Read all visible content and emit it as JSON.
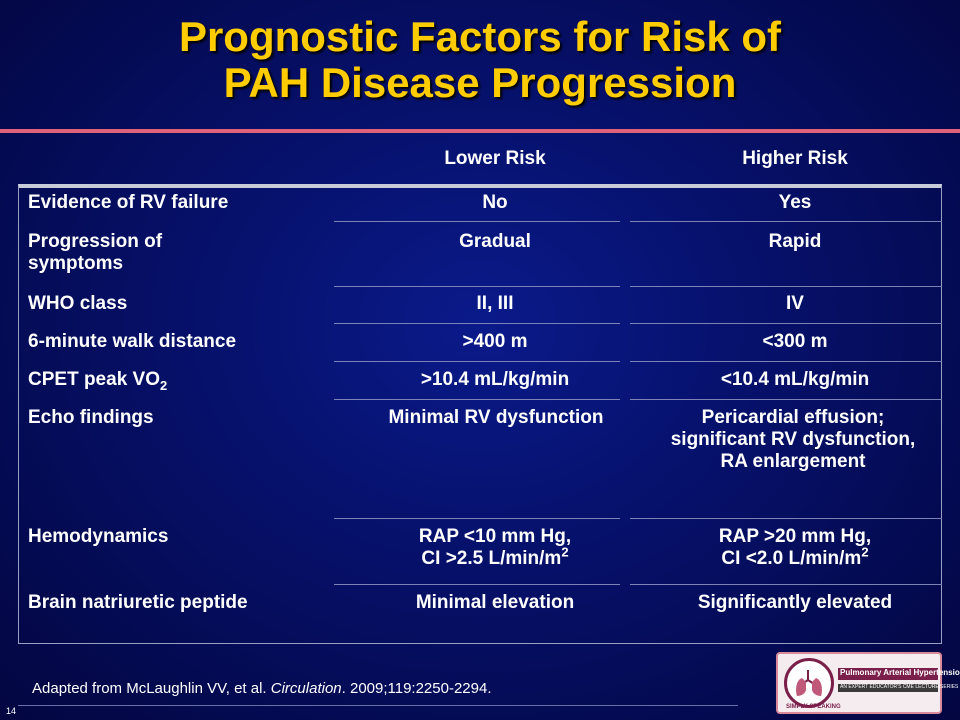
{
  "title": {
    "line1": "Prognostic Factors for Risk of",
    "line2": "PAH Disease Progression"
  },
  "columns": {
    "lower": "Lower Risk",
    "higher": "Higher Risk"
  },
  "rows": [
    {
      "label": "Evidence of RV failure",
      "lower": "No",
      "higher": "Yes"
    },
    {
      "label": "Progression of symptoms",
      "lower": "Gradual",
      "higher": "Rapid"
    },
    {
      "label": "WHO class",
      "lower": "II, III",
      "higher": "IV"
    },
    {
      "label": "6-minute walk distance",
      "lower": ">400 m",
      "higher": "<300 m"
    },
    {
      "label": "CPET peak VO",
      "label_sub": "2",
      "lower": ">10.4 mL/kg/min",
      "higher": "<10.4 mL/kg/min"
    },
    {
      "label": "Echo findings",
      "lower": "Minimal RV dysfunction",
      "higher": "Pericardial effusion; significant RV dysfunction, RA enlargement"
    },
    {
      "label": "Hemodynamics",
      "lower_line1": "RAP <10 mm Hg,",
      "lower_line2": "CI >2.5 L/min/m",
      "lower_sup": "2",
      "higher_line1": "RAP >20 mm Hg,",
      "higher_line2": "CI <2.0 L/min/m",
      "higher_sup": "2"
    },
    {
      "label": "Brain natriuretic peptide",
      "lower": "Minimal elevation",
      "higher": "Significantly elevated"
    }
  ],
  "footnote": {
    "prefix": "Adapted from  McLaughlin VV, et al. ",
    "journal": "Circulation",
    "suffix": ". 2009;119:2250-2294."
  },
  "page_number": "14",
  "logo": {
    "brand": "SIMPLY SPEAKING",
    "program": "Pulmonary Arterial Hypertension",
    "tagline": "AN EXPERT EDUCATOR'S CME LECTURE SERIES"
  }
}
